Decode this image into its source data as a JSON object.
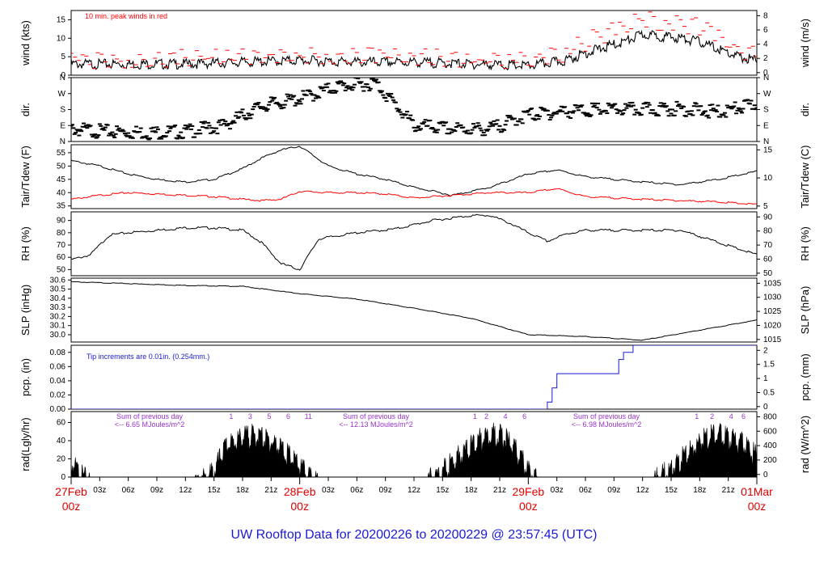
{
  "chart_data": [
    {
      "type": "line",
      "ylabel_left": "wind (kts)",
      "ylabel_right": "wind (m/s)",
      "annotation": "10 min. peak winds in red",
      "y_left_ticks": [
        0,
        5,
        10,
        15
      ],
      "y_right_ticks": [
        0,
        2,
        4,
        6,
        8
      ],
      "ylim": [
        0,
        17.5
      ],
      "x_hours": [
        0,
        6,
        12,
        18,
        24,
        30,
        36,
        42,
        48,
        52,
        54,
        58,
        60,
        64,
        66,
        70,
        72
      ],
      "series": [
        {
          "values": [
            3,
            3,
            3,
            3.5,
            4,
            3.5,
            3.5,
            3,
            2.5,
            4,
            6,
            9,
            11,
            10,
            9,
            5,
            4
          ]
        },
        {
          "values": [
            4.5,
            4,
            4.5,
            5,
            5,
            5,
            5,
            4,
            4,
            6,
            9,
            13,
            15,
            14,
            13,
            7,
            5.5
          ]
        }
      ]
    },
    {
      "type": "scatter",
      "ylabel_left": "dir.",
      "ylabel_right": "dir.",
      "y_left_ticks": [
        "N",
        "E",
        "S",
        "W",
        "N"
      ],
      "y_right_ticks": [
        "N",
        "E",
        "S",
        "W",
        "N"
      ],
      "ylim": [
        0,
        360
      ],
      "x_hours": [
        0,
        4,
        8,
        12,
        16,
        20,
        24,
        28,
        32,
        36,
        40,
        44,
        48,
        52,
        56,
        60,
        64,
        68,
        72
      ],
      "values": [
        90,
        75,
        70,
        75,
        110,
        220,
        260,
        330,
        350,
        110,
        90,
        90,
        170,
        190,
        200,
        200,
        205,
        185,
        230
      ]
    },
    {
      "type": "line",
      "ylabel_left": "Tair/Tdew (F)",
      "ylabel_right": "Tair/Tdew (C)",
      "y_left_ticks": [
        35,
        40,
        45,
        50,
        55
      ],
      "y_right_ticks": [
        5,
        10,
        15
      ],
      "ylim": [
        34,
        58
      ],
      "x_hours": [
        0,
        3,
        6,
        9,
        12,
        15,
        18,
        20,
        22,
        24,
        27,
        30,
        33,
        36,
        40,
        44,
        48,
        51,
        54,
        57,
        60,
        64,
        68,
        72
      ],
      "series": [
        {
          "values": [
            52,
            50,
            47,
            45,
            44,
            45,
            49,
            53,
            56,
            57.5,
            50,
            47,
            45,
            42,
            39,
            42,
            47,
            48.5,
            46,
            45,
            44,
            43,
            45,
            48
          ]
        },
        {
          "values": [
            37.5,
            39,
            40,
            39.5,
            39,
            38.5,
            37.5,
            37,
            37.5,
            40.5,
            40,
            40,
            39.5,
            38,
            39,
            40,
            40,
            41.5,
            38.5,
            38,
            37.5,
            37,
            36.5,
            35.5
          ]
        }
      ]
    },
    {
      "type": "line",
      "ylabel_left": "RH (%)",
      "ylabel_right": "RH (%)",
      "y_left_ticks": [
        50,
        60,
        70,
        80,
        90
      ],
      "y_right_ticks": [
        50,
        60,
        70,
        80,
        90
      ],
      "ylim": [
        45,
        97
      ],
      "x_hours": [
        0,
        2,
        4,
        6,
        9,
        12,
        15,
        18,
        20,
        22,
        24,
        26,
        30,
        34,
        38,
        42,
        44,
        46,
        48,
        50,
        52,
        54,
        57,
        60,
        64,
        68,
        72
      ],
      "values": [
        58,
        62,
        78,
        80,
        82,
        84,
        84,
        82,
        72,
        55,
        50,
        75,
        80,
        83,
        90,
        94,
        94,
        88,
        80,
        73,
        79,
        82,
        82,
        82,
        82,
        72,
        62
      ]
    },
    {
      "type": "line",
      "ylabel_left": "SLP (inHg)",
      "ylabel_right": "SLP (hPa)",
      "y_left_ticks": [
        30.0,
        30.1,
        30.2,
        30.3,
        30.4,
        30.5,
        30.6
      ],
      "y_right_ticks": [
        1015,
        1020,
        1025,
        1030,
        1035
      ],
      "ylim": [
        29.92,
        30.62
      ],
      "x_hours": [
        0,
        6,
        12,
        18,
        24,
        30,
        36,
        42,
        48,
        54,
        60,
        66,
        72
      ],
      "values": [
        30.58,
        30.56,
        30.54,
        30.53,
        30.45,
        30.39,
        30.29,
        30.18,
        30.0,
        29.98,
        29.94,
        30.05,
        30.16
      ]
    },
    {
      "type": "line",
      "ylabel_left": "pcp. (in)",
      "ylabel_right": "pcp. (mm)",
      "annotation": "Tip increments are 0.01in. (0.254mm.)",
      "y_left_ticks": [
        0.0,
        0.02,
        0.04,
        0.06,
        0.08
      ],
      "y_right_ticks": [
        0,
        0.5,
        1,
        1.5,
        2
      ],
      "ylim": [
        0,
        0.09
      ],
      "x_hours": [
        0,
        49.5,
        50,
        50.5,
        51,
        57,
        57.5,
        58,
        59,
        72
      ],
      "values": [
        0,
        0,
        0.01,
        0.03,
        0.05,
        0.05,
        0.07,
        0.08,
        0.09,
        0.09
      ]
    },
    {
      "type": "area",
      "ylabel_left": "rad(Lgly/hr)",
      "ylabel_right": "rad (W/m^2)",
      "y_left_ticks": [
        0,
        20,
        40,
        60
      ],
      "y_right_ticks": [
        0,
        200,
        400,
        600,
        800
      ],
      "ylim": [
        0,
        72
      ],
      "x_hours": [
        0,
        1,
        2,
        13,
        14,
        15,
        16,
        17,
        18,
        19,
        20,
        21,
        22,
        23,
        24,
        25,
        26,
        37,
        38,
        39,
        40,
        41,
        42,
        43,
        44,
        45,
        46,
        47,
        48,
        49,
        61,
        62,
        63,
        64,
        65,
        66,
        67,
        68,
        69,
        70,
        71,
        72
      ],
      "values": [
        22,
        8,
        0,
        0,
        5,
        12,
        35,
        45,
        50,
        52,
        50,
        45,
        38,
        28,
        18,
        5,
        0,
        0,
        5,
        12,
        22,
        32,
        40,
        48,
        55,
        52,
        45,
        30,
        15,
        0,
        0,
        8,
        15,
        25,
        35,
        45,
        50,
        55,
        48,
        45,
        40,
        28
      ],
      "daily_notes": [
        {
          "title": "Sum of previous day",
          "value": "<-- 6.65 MJoules/m^2"
        },
        {
          "title": "Sum of previous day",
          "value": "<-- 12.13 MJoules/m^2"
        },
        {
          "title": "Sum of previous day",
          "value": "<-- 6.98 MJoules/m^2"
        }
      ],
      "marks": [
        {
          "label": "1",
          "x": 16.8
        },
        {
          "label": "3",
          "x": 18.8
        },
        {
          "label": "5",
          "x": 20.8
        },
        {
          "label": "6",
          "x": 22.8
        },
        {
          "label": "11",
          "x": 24.9
        },
        {
          "label": "1",
          "x": 42.4
        },
        {
          "label": "2",
          "x": 43.6
        },
        {
          "label": "4",
          "x": 45.6
        },
        {
          "label": "6",
          "x": 47.6
        },
        {
          "label": "1",
          "x": 65.7
        },
        {
          "label": "2",
          "x": 67.3
        },
        {
          "label": "4",
          "x": 69.3
        },
        {
          "label": "6",
          "x": 70.6
        }
      ]
    }
  ],
  "x_axis": {
    "minor_ticks": [
      "03z",
      "06z",
      "09z",
      "12z",
      "15z",
      "18z",
      "21z"
    ],
    "days": [
      {
        "date": "27Feb",
        "time": "00z",
        "hour": 0
      },
      {
        "date": "28Feb",
        "time": "00z",
        "hour": 24
      },
      {
        "date": "29Feb",
        "time": "00z",
        "hour": 48
      },
      {
        "date": "01Mar",
        "time": "00z",
        "hour": 72
      }
    ]
  },
  "footer": "UW Rooftop Data for 20200226  to  20200229 @ 23:57:45  (UTC)",
  "colors": {
    "obs": "#000000",
    "peak": "#ff0000",
    "dew": "#ff0000",
    "precip": "#1a1ad6",
    "note_rad": "#9933cc",
    "footer": "#1a1ad6"
  }
}
